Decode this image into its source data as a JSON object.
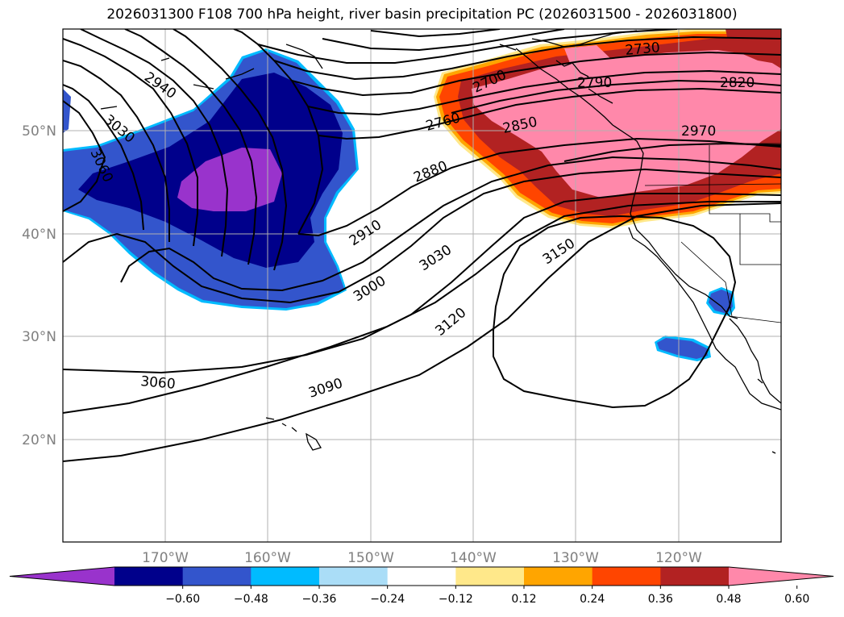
{
  "title": "2026031300 F108 700 hPa height, river basin precipitation PC (2026031500 - 2026031800)",
  "axes": {
    "lat_labels": [
      "50°N",
      "40°N",
      "30°N",
      "20°N"
    ],
    "lon_labels": [
      "170°W",
      "160°W",
      "150°W",
      "140°W",
      "130°W",
      "120°W"
    ]
  },
  "colorbar": {
    "colors": [
      "#9933cc",
      "#00008b",
      "#3355cc",
      "#00bbff",
      "#aaddf7",
      "#ffffff",
      "#ffe88a",
      "#ffa500",
      "#ff4500",
      "#b22222",
      "#ff88aa"
    ],
    "ticks": [
      "−0.60",
      "−0.48",
      "−0.36",
      "−0.24",
      "−0.12",
      "0.12",
      "0.24",
      "0.36",
      "0.48",
      "0.60"
    ]
  },
  "contour_labels": [
    "2940",
    "3030",
    "3060",
    "2700",
    "2730",
    "2790",
    "2820",
    "2760",
    "2850",
    "2970",
    "2880",
    "2910",
    "3030",
    "3000",
    "3150",
    "3120",
    "3060",
    "3090"
  ],
  "colors": {
    "purple": "#9933cc",
    "navy": "#00008b",
    "blue": "#3355cc",
    "cyan": "#00bbff",
    "pink": "#ff88aa",
    "darkred": "#b22222",
    "orangered": "#ff4500",
    "orange": "#ffa500",
    "yellow": "#ffe88a"
  }
}
